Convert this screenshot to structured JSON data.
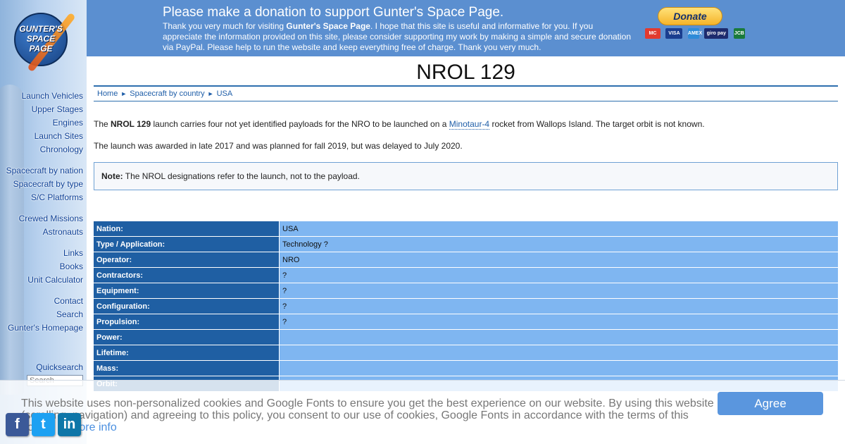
{
  "logo": {
    "lines": [
      "GUNTER'S",
      "SPACE",
      "PAGE"
    ]
  },
  "sidebar": {
    "groups": [
      [
        "Launch Vehicles",
        "Upper Stages",
        "Engines",
        "Launch Sites",
        "Chronology"
      ],
      [
        "Spacecraft by nation",
        "Spacecraft by type",
        "S/C Platforms"
      ],
      [
        "Crewed Missions",
        "Astronauts"
      ],
      [
        "Links",
        "Books",
        "Unit Calculator"
      ],
      [
        "Contact",
        "Search",
        "Gunter's Homepage"
      ]
    ],
    "quicksearch_label": "Quicksearch",
    "search_placeholder": "Search"
  },
  "donation": {
    "title": "Please make a donation to support Gunter's Space Page.",
    "text_before": "Thank you very much for visiting ",
    "text_bold": "Gunter's Space Page",
    "text_after": ". I hope that this site is useful and informative for you. If you appreciate the information provided on this site, please consider supporting my work by making a simple and secure donation via PayPal. Please help to run the website and keep everything free of charge. Thank you very much.",
    "button_label": "Donate",
    "cards": [
      {
        "label": "MC",
        "color": "#e23a2f"
      },
      {
        "label": "VISA",
        "color": "#1a3e8f"
      },
      {
        "label": "AMEX",
        "color": "#2e8bd8"
      },
      {
        "label": "giro pay",
        "color": "#1d2b6e"
      },
      {
        "label": "JCB",
        "color": "#1a7a3b"
      }
    ]
  },
  "page": {
    "title": "NROL 129",
    "breadcrumb": [
      "Home",
      "Spacecraft by country",
      "USA"
    ],
    "p1_before": "The ",
    "p1_bold": "NROL 129",
    "p1_mid": " launch carries four not yet identified payloads for the NRO to be launched on a ",
    "p1_link": "Minotaur-4",
    "p1_after": " rocket from Wallops Island. The target orbit is not known.",
    "p2": "The launch was awarded in late 2017 and was planned for fall 2019, but was delayed to July 2020.",
    "note_label": "Note:",
    "note_text": " The NROL designations refer to the launch, not to the payload."
  },
  "specs": [
    {
      "key": "Nation:",
      "value": "USA"
    },
    {
      "key": "Type / Application:",
      "value": "Technology ?"
    },
    {
      "key": "Operator:",
      "value": "NRO"
    },
    {
      "key": "Contractors:",
      "value": "?"
    },
    {
      "key": "Equipment:",
      "value": "?"
    },
    {
      "key": "Configuration:",
      "value": "?"
    },
    {
      "key": "Propulsion:",
      "value": "?"
    },
    {
      "key": "Power:",
      "value": ""
    },
    {
      "key": "Lifetime:",
      "value": ""
    },
    {
      "key": "Mass:",
      "value": ""
    },
    {
      "key": "Orbit:",
      "value": ""
    }
  ],
  "cookie": {
    "text": "This website uses non-personalized cookies and Google Fonts to ensure you get the best experience on our website. By using this website (scrolling, navigation) and agreeing to this policy, you consent to our use of cookies, Google Fonts in accordance with the terms of this policy. ",
    "more_info": "→ More info",
    "agree_label": "Agree"
  },
  "social": [
    {
      "label": "f",
      "color": "#3b5998",
      "icon": "facebook-icon"
    },
    {
      "label": "t",
      "color": "#1da1f2",
      "icon": "twitter-icon"
    },
    {
      "label": "in",
      "color": "#0e76a8",
      "icon": "linkedin-icon"
    }
  ]
}
